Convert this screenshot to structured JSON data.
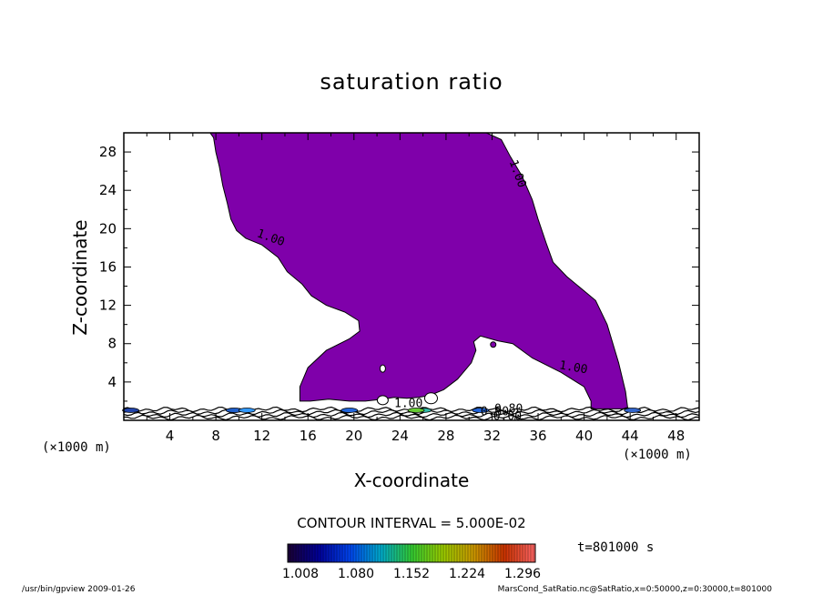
{
  "chart_data": {
    "type": "contour",
    "title": "saturation ratio",
    "xlabel": "X-coordinate",
    "ylabel": "Z-coordinate",
    "x_unit": "(×1000 m)",
    "y_unit": "(×1000 m)",
    "xlim": [
      0,
      50
    ],
    "ylim": [
      0,
      30
    ],
    "x_ticks": [
      "4",
      "8",
      "12",
      "16",
      "20",
      "24",
      "28",
      "32",
      "36",
      "40",
      "44",
      "48"
    ],
    "y_ticks": [
      "4",
      "8",
      "12",
      "16",
      "20",
      "24",
      "28"
    ],
    "contour_labels": [
      "1.00",
      "1.00",
      "1.00",
      "1.00",
      "0.80",
      "0.80",
      "0.00"
    ],
    "supersaturated_region": {
      "fill_color": "#7f00aa",
      "outline": [
        [
          7.5,
          30
        ],
        [
          31.5,
          30
        ],
        [
          32.8,
          29.3
        ],
        [
          33.6,
          27.5
        ],
        [
          34.6,
          25.5
        ],
        [
          35.5,
          23.0
        ],
        [
          36.0,
          21.0
        ],
        [
          36.7,
          18.5
        ],
        [
          37.3,
          16.5
        ],
        [
          38.5,
          15.0
        ],
        [
          40.0,
          13.5
        ],
        [
          41.0,
          12.5
        ],
        [
          42.0,
          10.0
        ],
        [
          43.0,
          6.0
        ],
        [
          43.6,
          3.0
        ],
        [
          43.8,
          1.2
        ],
        [
          40.6,
          1.2
        ],
        [
          40.6,
          2.0
        ],
        [
          40.0,
          3.5
        ],
        [
          38.0,
          5.0
        ],
        [
          35.5,
          6.5
        ],
        [
          33.8,
          8.0
        ],
        [
          32.5,
          8.3
        ],
        [
          31.0,
          8.8
        ],
        [
          30.4,
          8.2
        ],
        [
          30.6,
          7.3
        ],
        [
          30.2,
          6.0
        ],
        [
          29.0,
          4.3
        ],
        [
          27.8,
          3.2
        ],
        [
          26.6,
          2.6
        ],
        [
          25.6,
          2.4
        ],
        [
          24.6,
          2.3
        ],
        [
          23.5,
          2.4
        ],
        [
          22.5,
          2.2
        ],
        [
          21.0,
          2.0
        ],
        [
          19.6,
          2.0
        ],
        [
          17.8,
          2.2
        ],
        [
          16.2,
          2.0
        ],
        [
          15.3,
          2.0
        ],
        [
          15.3,
          3.5
        ],
        [
          16.0,
          5.5
        ],
        [
          17.6,
          7.3
        ],
        [
          19.6,
          8.5
        ],
        [
          20.5,
          9.3
        ],
        [
          20.4,
          10.4
        ],
        [
          19.2,
          11.3
        ],
        [
          17.6,
          12.0
        ],
        [
          16.3,
          13.0
        ],
        [
          15.5,
          14.2
        ],
        [
          14.2,
          15.5
        ],
        [
          13.4,
          17.0
        ],
        [
          12.0,
          18.3
        ],
        [
          10.6,
          19.0
        ],
        [
          9.8,
          19.8
        ],
        [
          9.3,
          21.0
        ],
        [
          9.0,
          22.6
        ],
        [
          8.6,
          24.5
        ],
        [
          8.3,
          26.5
        ],
        [
          8.0,
          28.0
        ],
        [
          7.8,
          29.5
        ]
      ]
    },
    "colorbar": {
      "ticks": [
        "1.008",
        "1.080",
        "1.152",
        "1.224",
        "1.296"
      ],
      "range": [
        1.008,
        1.296
      ],
      "colors": [
        "#1a0033",
        "#000099",
        "#0044ee",
        "#00aacc",
        "#33cc33",
        "#99cc00",
        "#cc9900",
        "#cc3300",
        "#ff6666"
      ]
    }
  },
  "contour_interval": "CONTOUR INTERVAL = 5.000E-02",
  "time_label": "t=801000 s",
  "footer_left": "/usr/bin/gpview  2009-01-26",
  "footer_right": "MarsCond_SatRatio.nc@SatRatio,x=0:50000,z=0:30000,t=801000"
}
